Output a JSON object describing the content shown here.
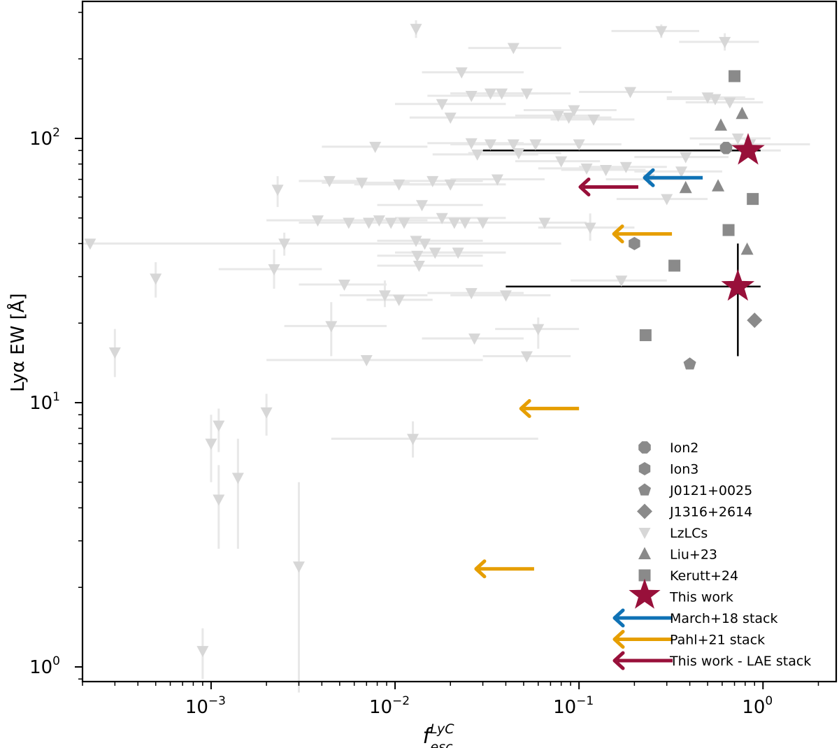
{
  "chart_data": {
    "type": "scatter",
    "xscale": "log",
    "yscale": "log",
    "xlim": [
      0.0002,
      2.5
    ],
    "ylim": [
      0.88,
      330
    ],
    "ylabel": "Lyα EW [Å]",
    "xlabel_base": "f",
    "xlabel_sup": "LyC",
    "xlabel_sub": "esc",
    "x_ticks": [
      {
        "base": "10",
        "exp": "−3",
        "value": 0.001
      },
      {
        "base": "10",
        "exp": "−2",
        "value": 0.01
      },
      {
        "base": "10",
        "exp": "−1",
        "value": 0.1
      },
      {
        "base": "10",
        "exp": "0",
        "value": 1
      }
    ],
    "y_ticks": [
      {
        "base": "10",
        "exp": "0",
        "value": 1
      },
      {
        "base": "10",
        "exp": "1",
        "value": 10
      },
      {
        "base": "10",
        "exp": "2",
        "value": 100
      }
    ],
    "colors": {
      "lzlcs": "#d7d7d7",
      "lzlcs_err": "#e8e8e8",
      "gray": "#8a8a8a",
      "this_work": "#98103a",
      "march": "#0f72b5",
      "pahl": "#e69e00",
      "black": "#000000"
    },
    "series": [
      {
        "name": "Ion2",
        "marker": "octagon",
        "points": [
          {
            "x": 0.63,
            "y": 92
          }
        ]
      },
      {
        "name": "Ion3",
        "marker": "hexagon",
        "points": [
          {
            "x": 0.2,
            "y": 40
          }
        ]
      },
      {
        "name": "J0121+0025",
        "marker": "pentagon",
        "points": [
          {
            "x": 0.4,
            "y": 14
          }
        ]
      },
      {
        "name": "J1316+2614",
        "marker": "diamond",
        "points": [
          {
            "x": 0.9,
            "y": 20.5
          }
        ]
      },
      {
        "name": "LzLCs",
        "marker": "triangle-down",
        "points": [
          {
            "x": 0.0003,
            "y": 15.5,
            "ylo": 12.5,
            "yhi": 19
          },
          {
            "x": 0.0005,
            "y": 29.5,
            "ylo": 25,
            "yhi": 34
          },
          {
            "x": 0.00022,
            "y": 40,
            "xlo": 0.0002,
            "xhi": 0.08
          },
          {
            "x": 0.0009,
            "y": 1.15,
            "ylo": 0.9,
            "yhi": 1.4
          },
          {
            "x": 0.001,
            "y": 7,
            "ylo": 5,
            "yhi": 9
          },
          {
            "x": 0.0011,
            "y": 8.2,
            "ylo": 6.5,
            "yhi": 9.5
          },
          {
            "x": 0.0011,
            "y": 4.3,
            "ylo": 2.8,
            "yhi": 5.8
          },
          {
            "x": 0.0014,
            "y": 5.2,
            "ylo": 2.8,
            "yhi": 7.3
          },
          {
            "x": 0.002,
            "y": 9.2,
            "ylo": 7.5,
            "yhi": 10.8
          },
          {
            "x": 0.003,
            "y": 2.4,
            "ylo": 0.8,
            "yhi": 5
          },
          {
            "x": 0.0022,
            "y": 32,
            "ylo": 27,
            "yhi": 38,
            "xlo": 0.0011,
            "xhi": 0.004
          },
          {
            "x": 0.0023,
            "y": 64,
            "ylo": 55,
            "yhi": 72
          },
          {
            "x": 0.0025,
            "y": 40,
            "ylo": 36,
            "yhi": 44
          },
          {
            "x": 0.0038,
            "y": 49,
            "xlo": 0.002,
            "xhi": 0.006
          },
          {
            "x": 0.0044,
            "y": 69,
            "xlo": 0.003,
            "xhi": 0.007
          },
          {
            "x": 0.0045,
            "y": 19.5,
            "ylo": 15,
            "yhi": 24,
            "xlo": 0.0025,
            "xhi": 0.009
          },
          {
            "x": 0.0053,
            "y": 28,
            "xlo": 0.003,
            "xhi": 0.009
          },
          {
            "x": 0.0056,
            "y": 48,
            "xlo": 0.003,
            "xhi": 0.01
          },
          {
            "x": 0.0066,
            "y": 68,
            "xlo": 0.004,
            "xhi": 0.012
          },
          {
            "x": 0.0072,
            "y": 48,
            "xlo": 0.004,
            "xhi": 0.012
          },
          {
            "x": 0.007,
            "y": 14.5,
            "xlo": 0.002,
            "xhi": 0.03
          },
          {
            "x": 0.0078,
            "y": 93,
            "xlo": 0.004,
            "xhi": 0.015
          },
          {
            "x": 0.0082,
            "y": 49,
            "xlo": 0.005,
            "xhi": 0.015
          },
          {
            "x": 0.0088,
            "y": 25.5,
            "ylo": 23,
            "yhi": 29,
            "xlo": 0.005,
            "xhi": 0.015
          },
          {
            "x": 0.0095,
            "y": 48,
            "xlo": 0.005,
            "xhi": 0.02
          },
          {
            "x": 0.0105,
            "y": 24.5,
            "xlo": 0.007,
            "xhi": 0.016
          },
          {
            "x": 0.0105,
            "y": 67,
            "xlo": 0.006,
            "xhi": 0.02
          },
          {
            "x": 0.0112,
            "y": 48,
            "xlo": 0.006,
            "xhi": 0.02
          },
          {
            "x": 0.0125,
            "y": 7.3,
            "ylo": 6.2,
            "yhi": 8.5,
            "xlo": 0.0045,
            "xhi": 0.06
          },
          {
            "x": 0.013,
            "y": 260,
            "ylo": 240,
            "yhi": 280
          },
          {
            "x": 0.013,
            "y": 41,
            "xlo": 0.008,
            "xhi": 0.03
          },
          {
            "x": 0.0132,
            "y": 36,
            "xlo": 0.008,
            "xhi": 0.03
          },
          {
            "x": 0.0135,
            "y": 33,
            "xlo": 0.008,
            "xhi": 0.03
          },
          {
            "x": 0.014,
            "y": 56,
            "xlo": 0.008,
            "xhi": 0.03
          },
          {
            "x": 0.0145,
            "y": 40,
            "xlo": 0.008,
            "xhi": 0.03
          },
          {
            "x": 0.016,
            "y": 69,
            "xlo": 0.01,
            "xhi": 0.03
          },
          {
            "x": 0.0165,
            "y": 37,
            "xlo": 0.01,
            "xhi": 0.03
          },
          {
            "x": 0.018,
            "y": 50,
            "xlo": 0.01,
            "xhi": 0.04
          },
          {
            "x": 0.018,
            "y": 135,
            "xlo": 0.01,
            "xhi": 0.04
          },
          {
            "x": 0.02,
            "y": 120,
            "xlo": 0.012,
            "xhi": 0.05
          },
          {
            "x": 0.02,
            "y": 67,
            "xlo": 0.012,
            "xhi": 0.04
          },
          {
            "x": 0.021,
            "y": 48,
            "xlo": 0.012,
            "xhi": 0.04
          },
          {
            "x": 0.022,
            "y": 37,
            "xlo": 0.012,
            "xhi": 0.04
          },
          {
            "x": 0.023,
            "y": 178,
            "xlo": 0.014,
            "xhi": 0.05
          },
          {
            "x": 0.024,
            "y": 48,
            "xlo": 0.013,
            "xhi": 0.045
          },
          {
            "x": 0.026,
            "y": 145,
            "xlo": 0.015,
            "xhi": 0.05
          },
          {
            "x": 0.026,
            "y": 96,
            "xlo": 0.015,
            "xhi": 0.05
          },
          {
            "x": 0.026,
            "y": 26,
            "xlo": 0.015,
            "xhi": 0.05
          },
          {
            "x": 0.027,
            "y": 17.5,
            "xlo": 0.014,
            "xhi": 0.05
          },
          {
            "x": 0.028,
            "y": 87,
            "xlo": 0.016,
            "xhi": 0.06
          },
          {
            "x": 0.03,
            "y": 48,
            "xlo": 0.015,
            "xhi": 0.06
          },
          {
            "x": 0.033,
            "y": 148,
            "xlo": 0.02,
            "xhi": 0.06
          },
          {
            "x": 0.033,
            "y": 95,
            "xlo": 0.02,
            "xhi": 0.06
          },
          {
            "x": 0.036,
            "y": 70,
            "xlo": 0.02,
            "xhi": 0.065
          },
          {
            "x": 0.038,
            "y": 148,
            "xlo": 0.02,
            "xhi": 0.07
          },
          {
            "x": 0.04,
            "y": 25.5,
            "xlo": 0.02,
            "xhi": 0.07
          },
          {
            "x": 0.044,
            "y": 220,
            "xlo": 0.025,
            "xhi": 0.08
          },
          {
            "x": 0.044,
            "y": 95,
            "xlo": 0.025,
            "xhi": 0.08
          },
          {
            "x": 0.047,
            "y": 88,
            "xlo": 0.025,
            "xhi": 0.08
          },
          {
            "x": 0.052,
            "y": 148,
            "xlo": 0.03,
            "xhi": 0.09
          },
          {
            "x": 0.052,
            "y": 15,
            "xlo": 0.03,
            "xhi": 0.09
          },
          {
            "x": 0.058,
            "y": 95,
            "xlo": 0.03,
            "xhi": 0.1
          },
          {
            "x": 0.06,
            "y": 19,
            "ylo": 16,
            "yhi": 21,
            "xlo": 0.035,
            "xhi": 0.1
          },
          {
            "x": 0.065,
            "y": 48,
            "xlo": 0.035,
            "xhi": 0.11
          },
          {
            "x": 0.077,
            "y": 122,
            "xlo": 0.045,
            "xhi": 0.13
          },
          {
            "x": 0.08,
            "y": 82,
            "xlo": 0.045,
            "xhi": 0.13
          },
          {
            "x": 0.088,
            "y": 120,
            "xlo": 0.05,
            "xhi": 0.15
          },
          {
            "x": 0.094,
            "y": 128,
            "xlo": 0.05,
            "xhi": 0.16
          },
          {
            "x": 0.1,
            "y": 95,
            "xlo": 0.05,
            "xhi": 0.17
          },
          {
            "x": 0.11,
            "y": 77,
            "xlo": 0.06,
            "xhi": 0.18
          },
          {
            "x": 0.115,
            "y": 46,
            "ylo": 41,
            "yhi": 52,
            "xlo": 0.06,
            "xhi": 0.2
          },
          {
            "x": 0.12,
            "y": 118,
            "xlo": 0.07,
            "xhi": 0.2
          },
          {
            "x": 0.14,
            "y": 76,
            "xlo": 0.08,
            "xhi": 0.23
          },
          {
            "x": 0.17,
            "y": 29,
            "xlo": 0.09,
            "xhi": 0.3
          },
          {
            "x": 0.18,
            "y": 78,
            "xlo": 0.1,
            "xhi": 0.3
          },
          {
            "x": 0.19,
            "y": 150,
            "xlo": 0.1,
            "xhi": 0.32
          },
          {
            "x": 0.24,
            "y": 70,
            "xlo": 0.14,
            "xhi": 0.4
          },
          {
            "x": 0.28,
            "y": 255,
            "ylo": 240,
            "yhi": 270,
            "xlo": 0.15,
            "xhi": 0.45
          },
          {
            "x": 0.3,
            "y": 59,
            "xlo": 0.16,
            "xhi": 0.5
          },
          {
            "x": 0.36,
            "y": 75,
            "xlo": 0.2,
            "xhi": 0.6
          },
          {
            "x": 0.38,
            "y": 85,
            "xlo": 0.2,
            "xhi": 0.65
          },
          {
            "x": 0.5,
            "y": 143,
            "xlo": 0.3,
            "xhi": 0.8
          },
          {
            "x": 0.55,
            "y": 141,
            "xlo": 0.3,
            "xhi": 0.9
          },
          {
            "x": 0.62,
            "y": 232,
            "ylo": 215,
            "yhi": 250,
            "xlo": 0.35,
            "xhi": 0.95
          },
          {
            "x": 0.66,
            "y": 137,
            "xlo": 0.38,
            "xhi": 1.0
          },
          {
            "x": 0.73,
            "y": 100,
            "xlo": 0.4,
            "xhi": 1.1
          },
          {
            "x": 0.78,
            "y": 90,
            "xlo": 0.42,
            "xhi": 1.25
          },
          {
            "x": 0.85,
            "y": 95,
            "xlo": 0.45,
            "xhi": 1.8
          }
        ]
      },
      {
        "name": "Liu+23",
        "marker": "triangle-up",
        "points": [
          {
            "x": 0.38,
            "y": 65
          },
          {
            "x": 0.57,
            "y": 66
          },
          {
            "x": 0.59,
            "y": 112
          },
          {
            "x": 0.77,
            "y": 124
          },
          {
            "x": 0.82,
            "y": 38
          }
        ]
      },
      {
        "name": "Kerutt+24",
        "marker": "square",
        "points": [
          {
            "x": 0.23,
            "y": 18
          },
          {
            "x": 0.33,
            "y": 33
          },
          {
            "x": 0.65,
            "y": 45
          },
          {
            "x": 0.7,
            "y": 172
          },
          {
            "x": 0.88,
            "y": 59
          }
        ]
      },
      {
        "name": "This work",
        "marker": "star",
        "points": [
          {
            "x": 0.83,
            "y": 90,
            "xlo": 0.03,
            "xhi": 0.97
          },
          {
            "x": 0.73,
            "y": 27.5,
            "xlo": 0.04,
            "xhi": 0.97,
            "ylo": 15,
            "yhi": 40
          }
        ]
      },
      {
        "name": "March+18 stack",
        "marker": "arrow-left",
        "points": [
          {
            "x": 0.47,
            "y": 71
          }
        ]
      },
      {
        "name": "Pahl+21 stack",
        "marker": "arrow-left",
        "points": [
          {
            "x": 0.32,
            "y": 43.5
          },
          {
            "x": 0.1,
            "y": 9.5
          },
          {
            "x": 0.057,
            "y": 2.35
          }
        ]
      },
      {
        "name": "This work - LAE stack",
        "marker": "arrow-left",
        "points": [
          {
            "x": 0.21,
            "y": 65.5
          }
        ]
      }
    ],
    "legend": {
      "placement": "lower-right",
      "entries": [
        {
          "label": "Ion2",
          "marker": "octagon",
          "color": "#8a8a8a"
        },
        {
          "label": "Ion3",
          "marker": "hexagon",
          "color": "#8a8a8a"
        },
        {
          "label": "J0121+0025",
          "marker": "pentagon",
          "color": "#8a8a8a"
        },
        {
          "label": "J1316+2614",
          "marker": "diamond",
          "color": "#8a8a8a"
        },
        {
          "label": "LzLCs",
          "marker": "triangle-down",
          "color": "#d7d7d7"
        },
        {
          "label": "Liu+23",
          "marker": "triangle-up",
          "color": "#8a8a8a"
        },
        {
          "label": "Kerutt+24",
          "marker": "square",
          "color": "#8a8a8a"
        },
        {
          "label": "This work",
          "marker": "star",
          "color": "#98103a"
        },
        {
          "label": "March+18 stack",
          "marker": "arrow-left",
          "color": "#0f72b5"
        },
        {
          "label": "Pahl+21 stack",
          "marker": "arrow-left",
          "color": "#e69e00"
        },
        {
          "label": "This work - LAE stack",
          "marker": "arrow-left",
          "color": "#98103a"
        }
      ]
    }
  }
}
